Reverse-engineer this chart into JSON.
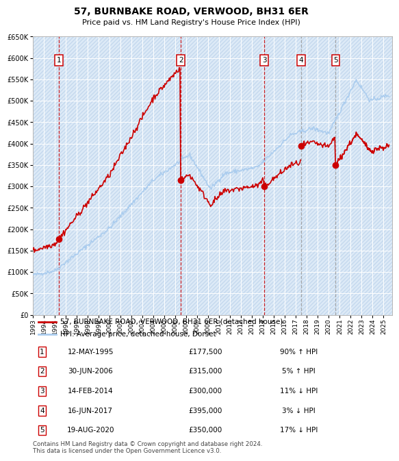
{
  "title": "57, BURNBAKE ROAD, VERWOOD, BH31 6ER",
  "subtitle": "Price paid vs. HM Land Registry's House Price Index (HPI)",
  "ylim": [
    0,
    650000
  ],
  "yticks": [
    0,
    50000,
    100000,
    150000,
    200000,
    250000,
    300000,
    350000,
    400000,
    450000,
    500000,
    550000,
    600000,
    650000
  ],
  "xlim_start": 1993.0,
  "xlim_end": 2025.8,
  "hpi_color": "#aaccee",
  "price_color": "#cc0000",
  "dot_color": "#cc0000",
  "plot_bg_color": "#ddeaf7",
  "hatch_color": "#c5d9ee",
  "grid_color": "#ffffff",
  "sale_transactions": [
    {
      "date_year": 1995.36,
      "price": 177500,
      "label": "1"
    },
    {
      "date_year": 2006.49,
      "price": 315000,
      "label": "2"
    },
    {
      "date_year": 2014.12,
      "price": 300000,
      "label": "3"
    },
    {
      "date_year": 2017.46,
      "price": 395000,
      "label": "4"
    },
    {
      "date_year": 2020.63,
      "price": 350000,
      "label": "5"
    }
  ],
  "vline_colors": [
    "#cc0000",
    "#cc0000",
    "#cc0000",
    "#999999",
    "#999999"
  ],
  "legend_line1": "57, BURNBAKE ROAD, VERWOOD, BH31 6ER (detached house)",
  "legend_line2": "HPI: Average price, detached house, Dorset",
  "table_rows": [
    {
      "num": "1",
      "date": "12-MAY-1995",
      "price": "£177,500",
      "hpi": "90% ↑ HPI"
    },
    {
      "num": "2",
      "date": "30-JUN-2006",
      "price": "£315,000",
      "hpi": "5% ↑ HPI"
    },
    {
      "num": "3",
      "date": "14-FEB-2014",
      "price": "£300,000",
      "hpi": "11% ↓ HPI"
    },
    {
      "num": "4",
      "date": "16-JUN-2017",
      "price": "£395,000",
      "hpi": "3% ↓ HPI"
    },
    {
      "num": "5",
      "date": "19-AUG-2020",
      "price": "£350,000",
      "hpi": "17% ↓ HPI"
    }
  ],
  "footer": "Contains HM Land Registry data © Crown copyright and database right 2024.\nThis data is licensed under the Open Government Licence v3.0."
}
